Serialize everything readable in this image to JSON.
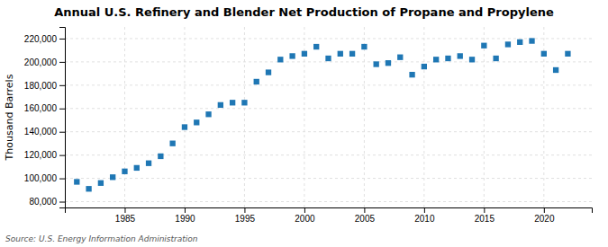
{
  "chart_data": {
    "type": "scatter",
    "title": "Annual U.S. Refinery and Blender Net Production of Propane and Propylene",
    "ylabel": "Thousand Barrels",
    "annotations": [
      "Source: U.S. Energy Information Administration"
    ],
    "x": [
      1981,
      1982,
      1983,
      1984,
      1985,
      1986,
      1987,
      1988,
      1989,
      1990,
      1991,
      1992,
      1993,
      1994,
      1995,
      1996,
      1997,
      1998,
      1999,
      2000,
      2001,
      2002,
      2003,
      2004,
      2005,
      2006,
      2007,
      2008,
      2009,
      2010,
      2011,
      2012,
      2013,
      2014,
      2015,
      2016,
      2017,
      2018,
      2019,
      2020,
      2021,
      2022
    ],
    "values": [
      97000,
      91000,
      96000,
      101000,
      106000,
      109000,
      113000,
      119000,
      130000,
      144000,
      148000,
      155000,
      163000,
      165000,
      165000,
      183000,
      191000,
      202000,
      205000,
      207000,
      213000,
      203000,
      207000,
      207000,
      213000,
      198000,
      199000,
      204000,
      189000,
      196000,
      202000,
      203000,
      205000,
      202000,
      214000,
      203000,
      215000,
      217000,
      218000,
      207000,
      193000,
      207000
    ],
    "xlim": [
      1980,
      2024
    ],
    "xticks": [
      1985,
      1990,
      1995,
      2000,
      2005,
      2010,
      2015,
      2020
    ],
    "ylim": [
      75000,
      230000
    ],
    "yticks": [
      {
        "value": 80000,
        "label": "80,000"
      },
      {
        "value": 100000,
        "label": "100,000"
      },
      {
        "value": 120000,
        "label": "120,000"
      },
      {
        "value": 140000,
        "label": "140,000"
      },
      {
        "value": 160000,
        "label": "160,000"
      },
      {
        "value": 180000,
        "label": "180,000"
      },
      {
        "value": 200000,
        "label": "200,000"
      },
      {
        "value": 220000,
        "label": "220,000"
      }
    ],
    "grid": true,
    "marker": "square"
  }
}
